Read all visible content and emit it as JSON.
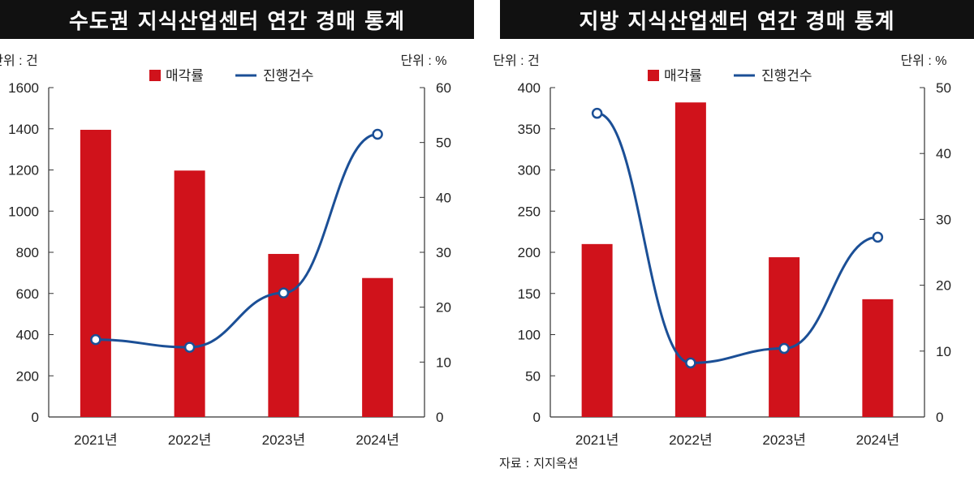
{
  "panels": [
    {
      "title": "수도권 지식산업센터 연간 경매 통계"
    },
    {
      "title": "지방 지식산업센터 연간 경매 통계"
    }
  ],
  "source": "자료 : 지지옥션",
  "chart_data": [
    {
      "type": "bar",
      "title": "수도권 지식산업센터 연간 경매 통계",
      "categories": [
        "2021년",
        "2022년",
        "2023년",
        "2024년"
      ],
      "left_unit": "단위 : 건",
      "right_unit": "단위 : %",
      "left_ylim": [
        0,
        1600
      ],
      "left_ticks": [
        0,
        200,
        400,
        600,
        800,
        1000,
        1200,
        1400,
        1600
      ],
      "right_ylim": [
        0,
        60
      ],
      "right_ticks": [
        0,
        10,
        20,
        30,
        40,
        50,
        60
      ],
      "legend_position": "top-center",
      "series": [
        {
          "name": "매각률",
          "kind": "bar",
          "axis": "left",
          "color": "#d0121b",
          "values": [
            1395,
            1197,
            792,
            675
          ]
        },
        {
          "name": "진행건수",
          "kind": "line",
          "axis": "right",
          "color": "#1b4f96",
          "values": [
            14.1,
            12.7,
            22.6,
            51.5
          ]
        }
      ]
    },
    {
      "type": "bar",
      "title": "지방 지식산업센터 연간 경매 통계",
      "categories": [
        "2021년",
        "2022년",
        "2023년",
        "2024년"
      ],
      "left_unit": "단위 : 건",
      "right_unit": "단위 : %",
      "left_ylim": [
        0,
        400
      ],
      "left_ticks": [
        0,
        50,
        100,
        150,
        200,
        250,
        300,
        350,
        400
      ],
      "right_ylim": [
        0,
        50
      ],
      "right_ticks": [
        0,
        10,
        20,
        30,
        40,
        50
      ],
      "legend_position": "top-center",
      "series": [
        {
          "name": "매각률",
          "kind": "bar",
          "axis": "left",
          "color": "#d0121b",
          "values": [
            210,
            382,
            194,
            143
          ]
        },
        {
          "name": "진행건수",
          "kind": "line",
          "axis": "right",
          "color": "#1b4f96",
          "values": [
            46.1,
            8.2,
            10.4,
            27.3
          ]
        }
      ]
    }
  ]
}
